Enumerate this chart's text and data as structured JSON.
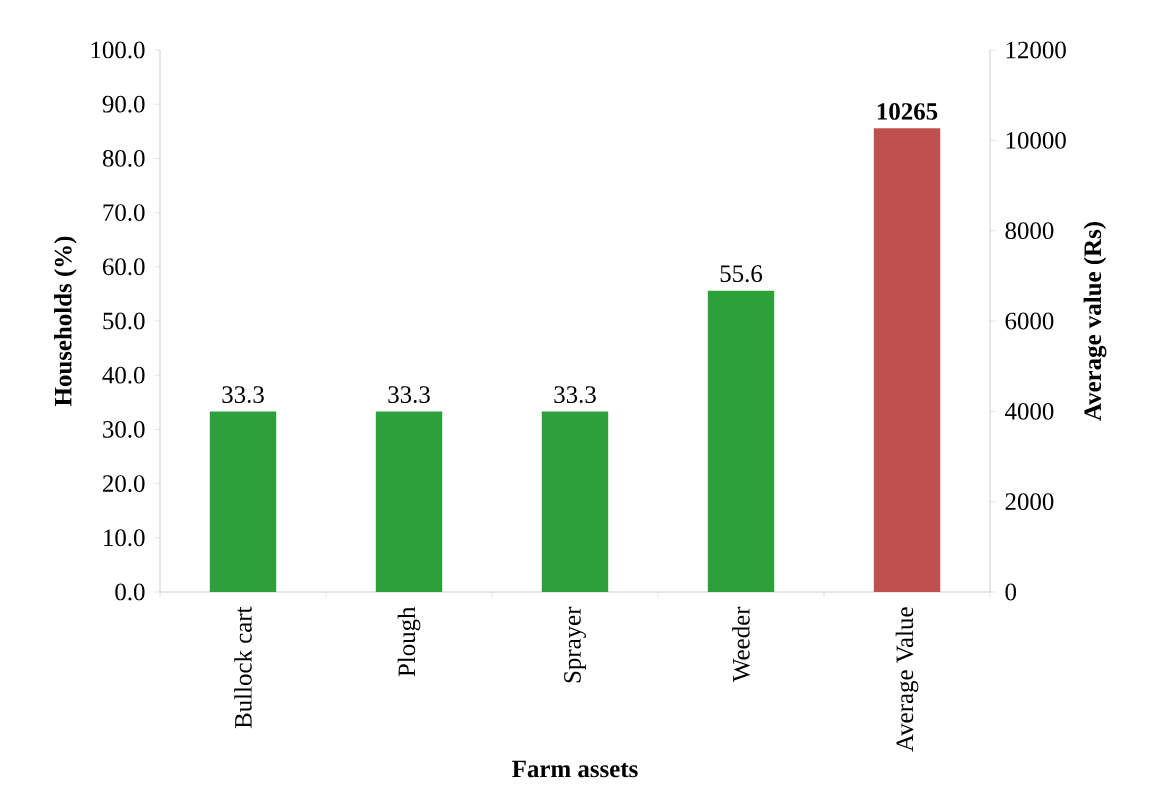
{
  "chart_data": {
    "type": "bar",
    "categories": [
      "Bullock cart",
      "Plough",
      "Sprayer",
      "Weeder",
      "Average Value"
    ],
    "series": [
      {
        "color": "#2ca03a",
        "values": [
          33.3,
          33.3,
          33.3,
          55.6,
          null
        ],
        "value_labels": [
          "33.3",
          "33.3",
          "33.3",
          "55.6",
          null
        ]
      },
      {
        "color": "#c0504d",
        "axis": "y2",
        "values": [
          null,
          null,
          null,
          null,
          10265
        ],
        "value_labels": [
          null,
          null,
          null,
          null,
          "10265"
        ]
      }
    ],
    "xlabel": "Farm assets",
    "ylabel": "Households (%)",
    "y2label": "Average value (Rs)",
    "ylim": [
      0,
      100
    ],
    "yticks": [
      {
        "value": 0,
        "label": "0.0"
      },
      {
        "value": 10,
        "label": "10.0"
      },
      {
        "value": 20,
        "label": "20.0"
      },
      {
        "value": 30,
        "label": "30.0"
      },
      {
        "value": 40,
        "label": "40.0"
      },
      {
        "value": 50,
        "label": "50.0"
      },
      {
        "value": 60,
        "label": "60.0"
      },
      {
        "value": 70,
        "label": "70.0"
      },
      {
        "value": 80,
        "label": "80.0"
      },
      {
        "value": 90,
        "label": "90.0"
      },
      {
        "value": 100,
        "label": "100.0"
      }
    ],
    "y2lim": [
      0,
      12000
    ],
    "y2ticks": [
      0,
      2000,
      4000,
      6000,
      8000,
      10000,
      12000
    ]
  }
}
